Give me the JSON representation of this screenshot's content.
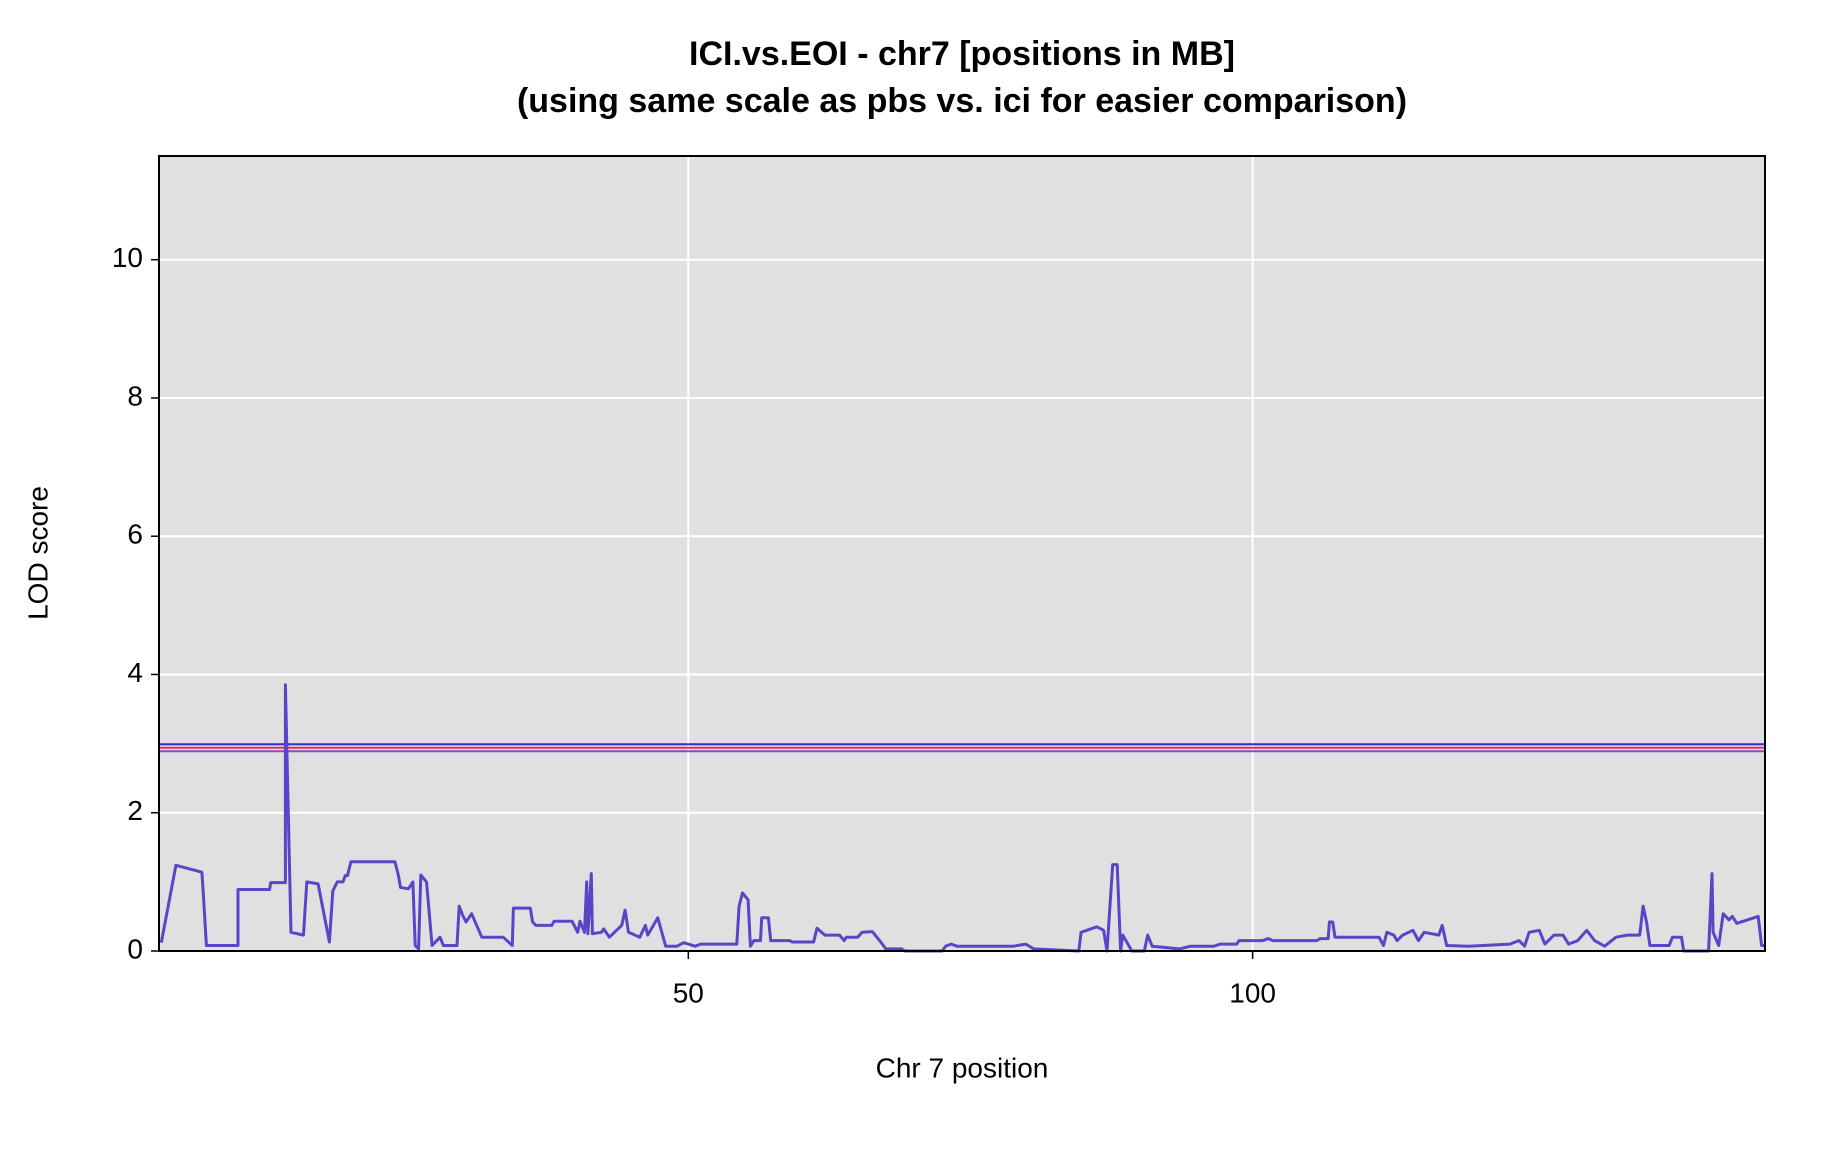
{
  "chart_data": {
    "type": "line",
    "title": "ICI.vs.EOI - chr7 [positions in MB]",
    "subtitle": "(using same scale as pbs vs. ici for easier comparison)",
    "x_label": "Chr 7 position",
    "y_label": "LOD score",
    "xlim": [
      3.1,
      145.4
    ],
    "ylim": [
      0,
      11.5
    ],
    "xticks": [
      50,
      100
    ],
    "yticks": [
      0,
      2,
      4,
      6,
      8,
      10
    ],
    "grid": true,
    "background": "#e0e0e0",
    "hlines": [
      {
        "value": 2.99,
        "color": "#2a2ae0"
      },
      {
        "value": 2.94,
        "color": "#e03060"
      },
      {
        "value": 2.89,
        "color": "#a040c0"
      }
    ],
    "series": [
      {
        "color": "#5b45c7",
        "x": [
          3.3,
          4.6,
          6.9,
          7.0,
          7.3,
          10.1,
          10.1,
          12.9,
          13.0,
          14.3,
          14.3,
          14.8,
          15.9,
          16.2,
          17.2,
          18.2,
          18.5,
          18.9,
          19.4,
          19.6,
          19.8,
          20.1,
          24.0,
          24.3,
          24.5,
          25.2,
          25.6,
          25.8,
          26.1,
          26.3,
          26.8,
          27.3,
          28.0,
          28.3,
          29.5,
          29.7,
          30.0,
          30.3,
          30.8,
          31.7,
          33.6,
          34.4,
          34.5,
          36.0,
          36.2,
          36.5,
          37.9,
          38.1,
          39.7,
          40.2,
          40.4,
          40.8,
          41.0,
          41.1,
          41.4,
          41.5,
          42.3,
          42.5,
          43.0,
          44.1,
          44.4,
          44.7,
          45.7,
          46.2,
          46.4,
          47.3,
          48.0,
          49.0,
          49.6,
          50.6,
          51.1,
          54.3,
          54.5,
          54.8,
          55.3,
          55.5,
          55.8,
          56.4,
          56.5,
          57.1,
          57.3,
          59.0,
          59.2,
          61.1,
          61.4,
          62.1,
          63.4,
          63.8,
          64.0,
          65.0,
          65.4,
          66.3,
          67.1,
          67.5,
          68.9,
          69.2,
          72.5,
          72.8,
          73.3,
          73.8,
          78.8,
          79.9,
          80.6,
          84.6,
          84.8,
          86.2,
          86.8,
          87.1,
          87.6,
          88.0,
          88.3,
          88.5,
          89.3,
          90.4,
          90.7,
          91.1,
          93.5,
          94.5,
          96.6,
          97.1,
          98.6,
          98.8,
          100.9,
          101.4,
          101.8,
          105.7,
          106.0,
          106.7,
          106.8,
          107.1,
          107.3,
          111.2,
          111.6,
          111.9,
          112.5,
          112.8,
          113.3,
          114.2,
          114.7,
          115.2,
          116.5,
          116.8,
          117.2,
          119.1,
          122.8,
          123.6,
          124.1,
          124.5,
          125.4,
          125.9,
          126.7,
          127.5,
          128.0,
          128.8,
          129.6,
          130.3,
          131.2,
          132.2,
          133.2,
          134.3,
          134.6,
          134.9,
          135.2,
          136.9,
          137.2,
          138.0,
          138.2,
          140.4,
          140.7,
          140.8,
          141.3,
          141.7,
          142.2,
          142.5,
          142.9,
          144.8,
          145.1,
          145.4
        ],
        "values": [
          0.12,
          1.24,
          1.14,
          0.9,
          0.08,
          0.08,
          0.89,
          0.89,
          0.99,
          0.99,
          3.85,
          0.27,
          0.23,
          1.0,
          0.97,
          0.13,
          0.87,
          1.0,
          1.0,
          1.09,
          1.09,
          1.29,
          1.29,
          1.1,
          0.92,
          0.9,
          1.0,
          0.08,
          0.03,
          1.1,
          1.0,
          0.08,
          0.2,
          0.08,
          0.08,
          0.65,
          0.52,
          0.42,
          0.54,
          0.2,
          0.2,
          0.08,
          0.62,
          0.62,
          0.42,
          0.37,
          0.37,
          0.43,
          0.43,
          0.27,
          0.43,
          0.27,
          1.0,
          0.25,
          1.12,
          0.25,
          0.27,
          0.32,
          0.2,
          0.37,
          0.59,
          0.27,
          0.2,
          0.37,
          0.23,
          0.48,
          0.07,
          0.07,
          0.12,
          0.07,
          0.1,
          0.1,
          0.65,
          0.84,
          0.74,
          0.07,
          0.15,
          0.15,
          0.48,
          0.48,
          0.15,
          0.15,
          0.13,
          0.13,
          0.33,
          0.23,
          0.23,
          0.15,
          0.2,
          0.2,
          0.27,
          0.28,
          0.12,
          0.03,
          0.03,
          0,
          0,
          0.07,
          0.1,
          0.07,
          0.07,
          0.1,
          0.03,
          0,
          0.27,
          0.35,
          0.3,
          0,
          1.25,
          1.25,
          0,
          0.23,
          0,
          0,
          0.23,
          0.07,
          0.03,
          0.07,
          0.07,
          0.1,
          0.1,
          0.15,
          0.15,
          0.18,
          0.15,
          0.15,
          0.18,
          0.18,
          0.42,
          0.42,
          0.2,
          0.2,
          0.08,
          0.27,
          0.23,
          0.15,
          0.23,
          0.3,
          0.15,
          0.27,
          0.23,
          0.37,
          0.08,
          0.07,
          0.1,
          0.15,
          0.07,
          0.27,
          0.3,
          0.1,
          0.23,
          0.23,
          0.1,
          0.15,
          0.3,
          0.15,
          0.07,
          0.2,
          0.23,
          0.23,
          0.65,
          0.42,
          0.08,
          0.08,
          0.2,
          0.2,
          0,
          0,
          1.12,
          0.27,
          0.08,
          0.54,
          0.45,
          0.5,
          0.4,
          0.5,
          0.08,
          0.08
        ]
      }
    ]
  }
}
